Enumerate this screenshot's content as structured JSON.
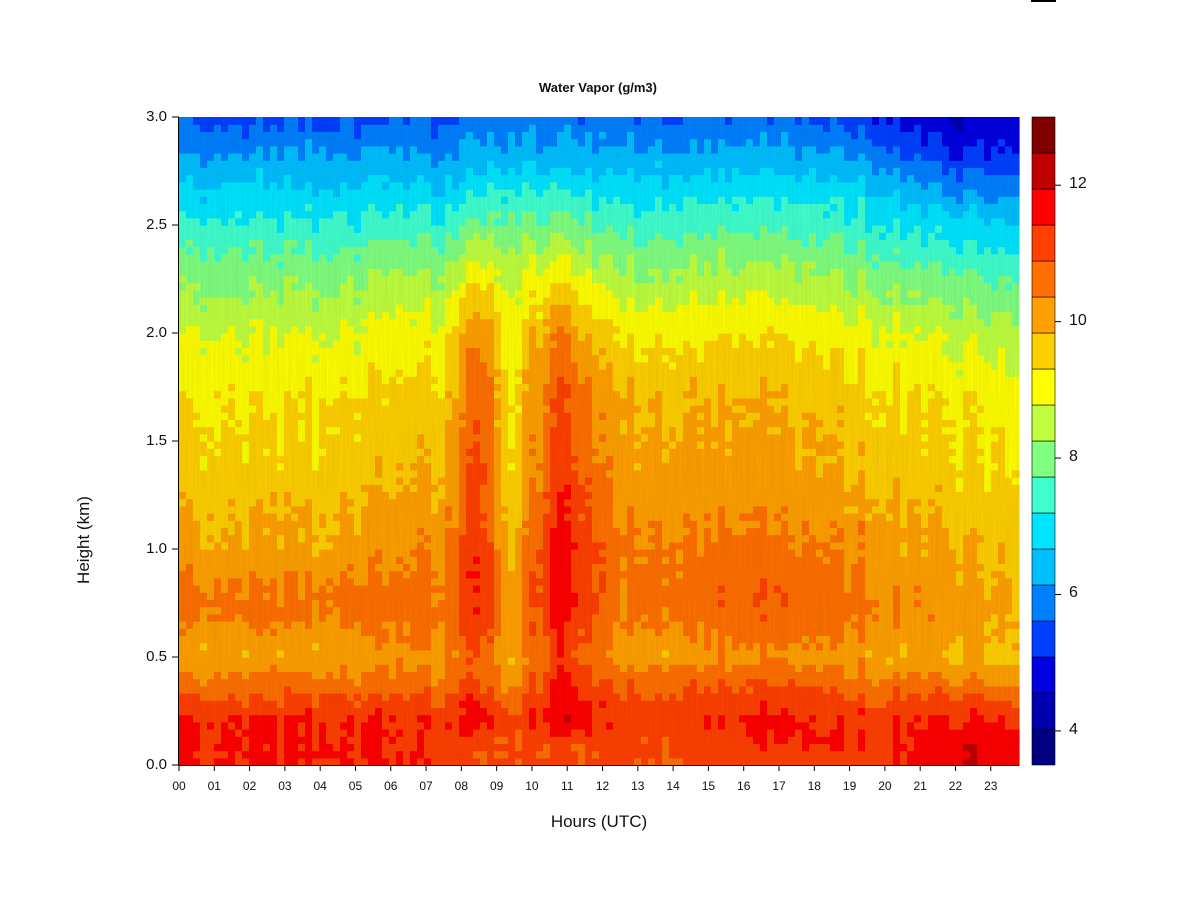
{
  "chart_data": {
    "type": "heatmap",
    "title": "Water Vapor (g/m3)",
    "xlabel": "Hours (UTC)",
    "ylabel": "Height (km)",
    "xlim": [
      0,
      23.8
    ],
    "ylim": [
      0,
      3.0
    ],
    "x_ticks": [
      "00",
      "01",
      "02",
      "03",
      "04",
      "05",
      "06",
      "07",
      "08",
      "09",
      "10",
      "11",
      "12",
      "13",
      "14",
      "15",
      "16",
      "17",
      "18",
      "19",
      "20",
      "21",
      "22",
      "23"
    ],
    "y_ticks": [
      "0.0",
      "0.5",
      "1.0",
      "1.5",
      "2.0",
      "2.5",
      "3.0"
    ],
    "colorbar": {
      "min": 3.5,
      "max": 13.0,
      "ticks": [
        "4",
        "6",
        "8",
        "10",
        "12"
      ],
      "levels": [
        "#000080",
        "#0000b0",
        "#0000e0",
        "#0040ff",
        "#0080ff",
        "#00bfff",
        "#00e5ff",
        "#40ffcf",
        "#80ff80",
        "#bfff40",
        "#ffff00",
        "#ffd000",
        "#ffa000",
        "#ff7000",
        "#ff4000",
        "#ff0000",
        "#c00000",
        "#800000"
      ]
    },
    "profile_heights_km": [
      0.0,
      0.1,
      0.2,
      0.3,
      0.4,
      0.5,
      0.6,
      0.7,
      0.8,
      1.0,
      1.2,
      1.4,
      1.7,
      2.0,
      2.3,
      2.6,
      2.8,
      3.0
    ],
    "profiles": [
      {
        "hour": 0,
        "values": [
          11.5,
          11.5,
          11.5,
          11.0,
          10.5,
          10.0,
          10.2,
          10.5,
          10.5,
          10.0,
          9.8,
          9.5,
          9.3,
          8.8,
          8.0,
          7.0,
          6.3,
          5.5
        ]
      },
      {
        "hour": 4,
        "values": [
          11.5,
          11.5,
          11.5,
          11.0,
          10.5,
          10.0,
          10.2,
          10.5,
          10.5,
          10.0,
          9.8,
          9.5,
          9.3,
          8.8,
          8.0,
          7.0,
          6.3,
          5.5
        ]
      },
      {
        "hour": 7.5,
        "values": [
          11.2,
          11.2,
          11.3,
          11.0,
          10.5,
          10.2,
          10.4,
          10.5,
          10.5,
          10.3,
          10.0,
          9.8,
          9.5,
          9.0,
          8.2,
          7.0,
          6.2,
          5.5
        ]
      },
      {
        "hour": 8.5,
        "values": [
          11.0,
          11.0,
          11.8,
          11.5,
          11.0,
          11.0,
          11.2,
          11.5,
          11.5,
          11.5,
          11.3,
          11.2,
          11.0,
          10.5,
          9.0,
          7.5,
          6.5,
          5.8
        ]
      },
      {
        "hour": 9.4,
        "values": [
          11.0,
          11.0,
          11.0,
          10.5,
          10.0,
          9.8,
          10.0,
          10.0,
          10.0,
          9.8,
          9.5,
          9.3,
          9.2,
          9.0,
          8.6,
          7.5,
          6.5,
          5.8
        ]
      },
      {
        "hour": 10.8,
        "values": [
          11.0,
          11.0,
          12.0,
          11.8,
          11.5,
          11.3,
          11.5,
          11.7,
          11.8,
          11.8,
          11.5,
          11.3,
          11.0,
          10.5,
          9.0,
          7.5,
          6.5,
          5.8
        ]
      },
      {
        "hour": 12.5,
        "values": [
          11.0,
          11.0,
          11.2,
          11.0,
          10.6,
          10.0,
          10.2,
          10.4,
          10.5,
          10.4,
          10.2,
          10.0,
          9.8,
          9.2,
          8.2,
          7.2,
          6.4,
          5.7
        ]
      },
      {
        "hour": 16.5,
        "values": [
          11.0,
          11.3,
          11.5,
          11.2,
          10.8,
          10.2,
          10.5,
          10.8,
          10.8,
          10.5,
          10.2,
          10.0,
          9.8,
          9.2,
          8.3,
          7.2,
          6.4,
          5.6
        ]
      },
      {
        "hour": 19.5,
        "values": [
          11.2,
          11.3,
          11.3,
          11.0,
          10.5,
          10.0,
          10.3,
          10.5,
          10.5,
          10.2,
          10.0,
          9.7,
          9.5,
          9.0,
          8.0,
          7.0,
          6.2,
          5.3
        ]
      },
      {
        "hour": 22,
        "values": [
          11.8,
          11.8,
          11.5,
          11.0,
          10.3,
          9.8,
          10.0,
          10.0,
          10.0,
          9.8,
          9.6,
          9.4,
          9.2,
          8.6,
          7.6,
          6.4,
          5.2,
          4.5
        ]
      },
      {
        "hour": 23.8,
        "values": [
          11.8,
          11.8,
          11.5,
          11.0,
          10.3,
          9.8,
          10.0,
          10.0,
          10.0,
          9.8,
          9.6,
          9.4,
          9.2,
          8.6,
          7.6,
          6.4,
          5.4,
          4.8
        ]
      }
    ]
  }
}
